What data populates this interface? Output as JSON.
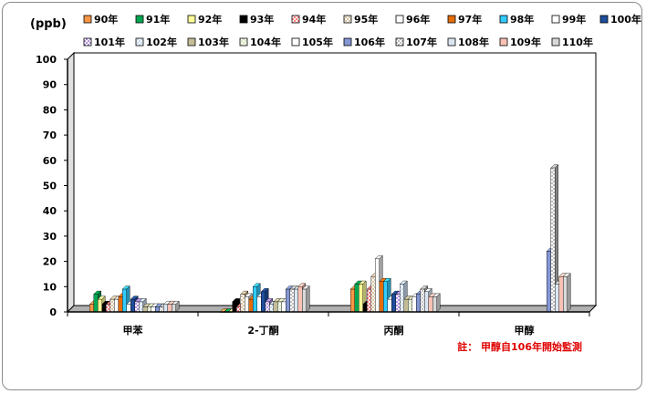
{
  "chart_data": {
    "type": "bar",
    "unit_label": "(ppb)",
    "ylim": [
      0,
      100
    ],
    "yticks": [
      0,
      10,
      20,
      30,
      40,
      50,
      60,
      70,
      80,
      90,
      100
    ],
    "categories": [
      "甲苯",
      "2-丁酮",
      "丙酮",
      "甲醇"
    ],
    "series": [
      {
        "name": "90年",
        "color": "#f79646",
        "pattern": "solid",
        "values": [
          3,
          0,
          9,
          null
        ]
      },
      {
        "name": "91年",
        "color": "#00a651",
        "pattern": "solid",
        "values": [
          7,
          0,
          11,
          null
        ]
      },
      {
        "name": "92年",
        "color": "#ffff99",
        "pattern": "solid",
        "values": [
          5,
          0,
          11,
          null
        ]
      },
      {
        "name": "93年",
        "color": "#000000",
        "pattern": "solid",
        "values": [
          3,
          4,
          3,
          null
        ]
      },
      {
        "name": "94年",
        "color": "#ff7f7f",
        "pattern": "checker",
        "values": [
          3,
          2,
          9,
          null
        ]
      },
      {
        "name": "95年",
        "color": "#d6c2a0",
        "pattern": "checker",
        "values": [
          5,
          7,
          14,
          null
        ]
      },
      {
        "name": "96年",
        "color": "#ffffff",
        "pattern": "solid",
        "values": [
          5,
          6,
          21,
          null
        ]
      },
      {
        "name": "97年",
        "color": "#e46c0a",
        "pattern": "solid",
        "values": [
          6,
          5,
          12,
          null
        ]
      },
      {
        "name": "98年",
        "color": "#33ccff",
        "pattern": "solid",
        "values": [
          9,
          10,
          12,
          null
        ]
      },
      {
        "name": "99年",
        "color": "#ffffff",
        "pattern": "solid",
        "values": [
          3,
          6,
          5,
          null
        ]
      },
      {
        "name": "100年",
        "color": "#1f4e9c",
        "pattern": "solid",
        "values": [
          5,
          8,
          7,
          null
        ]
      },
      {
        "name": "101年",
        "color": "#b28fe0",
        "pattern": "checker",
        "values": [
          4,
          4,
          7,
          null
        ]
      },
      {
        "name": "102年",
        "color": "#c6d9f1",
        "pattern": "checker",
        "values": [
          4,
          3,
          11,
          null
        ]
      },
      {
        "name": "103年",
        "color": "#c4bd97",
        "pattern": "solid",
        "values": [
          2,
          4,
          5,
          null
        ]
      },
      {
        "name": "104年",
        "color": "#d7e4bd",
        "pattern": "checker",
        "values": [
          2,
          4,
          5,
          null
        ]
      },
      {
        "name": "105年",
        "color": "#ffffff",
        "pattern": "checker",
        "values": [
          2,
          4,
          6,
          null
        ]
      },
      {
        "name": "106年",
        "color": "#8497d4",
        "pattern": "solid",
        "values": [
          2,
          9,
          7,
          24
        ]
      },
      {
        "name": "107年",
        "color": "#bfbfbf",
        "pattern": "checker",
        "values": [
          2,
          9,
          9,
          57
        ]
      },
      {
        "name": "108年",
        "color": "#dce6f2",
        "pattern": "solid",
        "values": [
          3,
          9,
          8,
          11
        ]
      },
      {
        "name": "109年",
        "color": "#f9c2b4",
        "pattern": "solid",
        "values": [
          3,
          10,
          6,
          14
        ]
      },
      {
        "name": "110年",
        "color": "#d9d9d9",
        "pattern": "solid",
        "values": [
          3,
          9,
          6,
          14
        ]
      }
    ],
    "note": "註： 甲醇自106年開始監測"
  }
}
